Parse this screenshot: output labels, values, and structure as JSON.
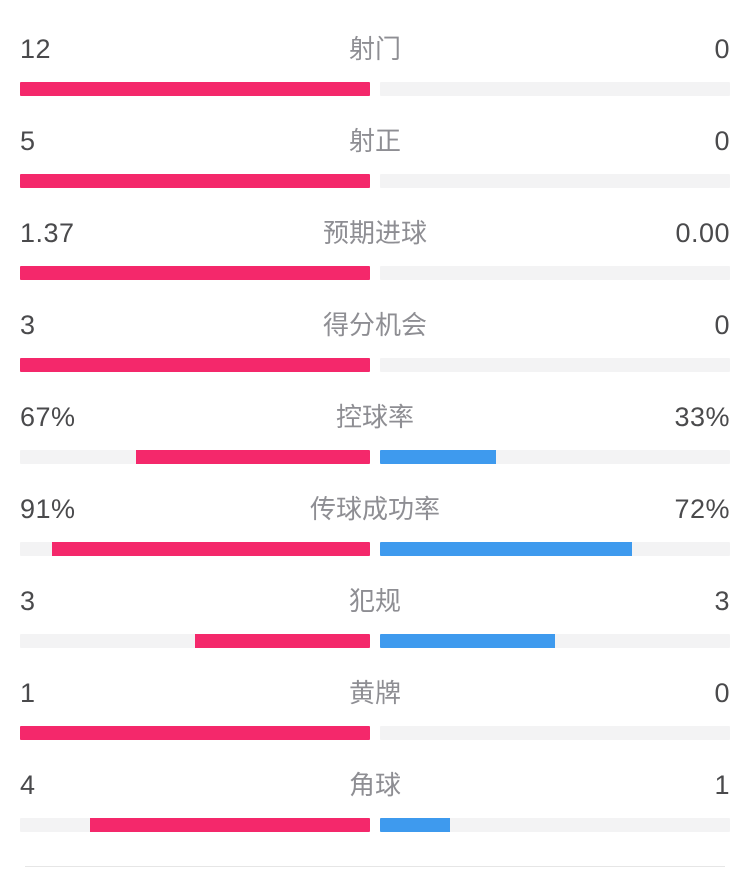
{
  "panel": {
    "background": "#ffffff"
  },
  "colors": {
    "home": "#f4286b",
    "away": "#3e9aee",
    "track": "#f3f3f4",
    "value_text": "#4a4a4c",
    "label_text": "#8e8e93",
    "divider": "#e6e6e6"
  },
  "rows": [
    {
      "label": "射门",
      "home_display": "12",
      "away_display": "0",
      "home": 12,
      "away": 0,
      "kind": "count"
    },
    {
      "label": "射正",
      "home_display": "5",
      "away_display": "0",
      "home": 5,
      "away": 0,
      "kind": "count"
    },
    {
      "label": "预期进球",
      "home_display": "1.37",
      "away_display": "0.00",
      "home": 1.37,
      "away": 0,
      "kind": "count"
    },
    {
      "label": "得分机会",
      "home_display": "3",
      "away_display": "0",
      "home": 3,
      "away": 0,
      "kind": "count"
    },
    {
      "label": "控球率",
      "home_display": "67%",
      "away_display": "33%",
      "home": 67,
      "away": 33,
      "kind": "percent"
    },
    {
      "label": "传球成功率",
      "home_display": "91%",
      "away_display": "72%",
      "home": 91,
      "away": 72,
      "kind": "percent"
    },
    {
      "label": "犯规",
      "home_display": "3",
      "away_display": "3",
      "home": 3,
      "away": 3,
      "kind": "count"
    },
    {
      "label": "黄牌",
      "home_display": "1",
      "away_display": "0",
      "home": 1,
      "away": 0,
      "kind": "count"
    },
    {
      "label": "角球",
      "home_display": "4",
      "away_display": "1",
      "home": 4,
      "away": 1,
      "kind": "count"
    }
  ],
  "chart_data": {
    "type": "bar",
    "orientation": "horizontal-paired-from-center",
    "categories": [
      "射门",
      "射正",
      "预期进球",
      "得分机会",
      "控球率",
      "传球成功率",
      "犯规",
      "黄牌",
      "角球"
    ],
    "series": [
      {
        "name": "home",
        "color": "#f4286b",
        "values": [
          12,
          5,
          1.37,
          3,
          67,
          91,
          3,
          1,
          4
        ]
      },
      {
        "name": "away",
        "color": "#3e9aee",
        "values": [
          0,
          0,
          0.0,
          0,
          33,
          72,
          3,
          0,
          1
        ]
      }
    ],
    "value_labels": {
      "home": [
        "12",
        "5",
        "1.37",
        "3",
        "67%",
        "91%",
        "3",
        "1",
        "4"
      ],
      "away": [
        "0",
        "0",
        "0.00",
        "0",
        "33%",
        "72%",
        "3",
        "0",
        "1"
      ]
    },
    "bar_fill_rule": "percent rows fill value/100 of each half; count rows fill value/(home+away) of each half, anchored at center",
    "legend_position": "none",
    "grid": false
  }
}
